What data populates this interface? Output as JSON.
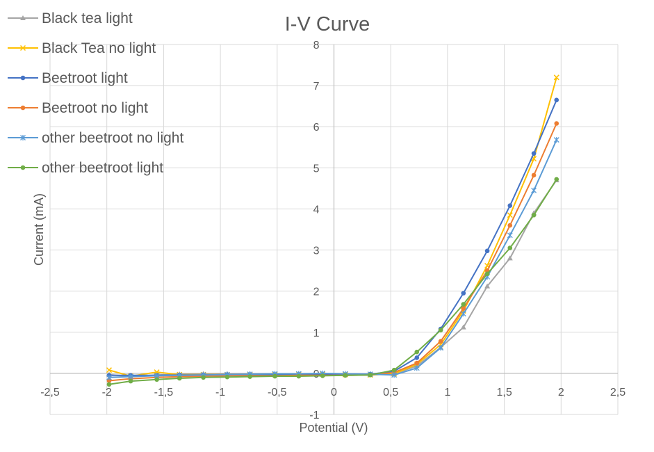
{
  "chart_data": {
    "type": "scatter",
    "title": "I-V Curve",
    "xlabel": "Potential  (V)",
    "ylabel": "Current (mA)",
    "xlim": [
      -2.5,
      2.5
    ],
    "ylim": [
      -1,
      8
    ],
    "xticks": [
      -2.5,
      -2,
      -1.5,
      -1,
      -0.5,
      0,
      0.5,
      1,
      1.5,
      2,
      2.5
    ],
    "xtick_labels": [
      "-2,5",
      "-2",
      "-1,5",
      "-1",
      "-0,5",
      "0",
      "0,5",
      "1",
      "1,5",
      "2",
      "2,5"
    ],
    "yticks": [
      -1,
      0,
      1,
      2,
      3,
      4,
      5,
      6,
      7,
      8
    ],
    "ytick_labels": [
      "-1",
      "0",
      "1",
      "2",
      "3",
      "4",
      "5",
      "6",
      "7",
      "8"
    ],
    "grid": true,
    "legend_position": "top-left",
    "series": [
      {
        "name": "Black tea light",
        "color": "#A5A5A5",
        "marker": "triangle",
        "points": [
          [
            -1.98,
            -0.03
          ],
          [
            -1.79,
            -0.08
          ],
          [
            -1.56,
            -0.04
          ],
          [
            -1.36,
            -0.02
          ],
          [
            -1.15,
            -0.01
          ],
          [
            -0.94,
            -0.01
          ],
          [
            -0.74,
            -0.01
          ],
          [
            -0.52,
            -0.01
          ],
          [
            -0.31,
            -0.01
          ],
          [
            -0.1,
            -0.01
          ],
          [
            0.1,
            -0.02
          ],
          [
            0.32,
            -0.03
          ],
          [
            0.53,
            -0.02
          ],
          [
            0.73,
            0.18
          ],
          [
            0.94,
            0.63
          ],
          [
            1.14,
            1.12
          ],
          [
            1.35,
            2.12
          ],
          [
            1.55,
            2.8
          ],
          [
            1.76,
            3.9
          ],
          [
            1.96,
            4.7
          ]
        ]
      },
      {
        "name": "Black Tea no light",
        "color": "#FFC000",
        "marker": "x",
        "points": [
          [
            -1.98,
            0.08
          ],
          [
            -1.79,
            -0.07
          ],
          [
            -1.56,
            0.03
          ],
          [
            -1.36,
            -0.03
          ],
          [
            -1.15,
            -0.03
          ],
          [
            -0.94,
            -0.03
          ],
          [
            -0.74,
            -0.03
          ],
          [
            -0.52,
            -0.03
          ],
          [
            -0.31,
            -0.02
          ],
          [
            -0.1,
            -0.02
          ],
          [
            0.1,
            -0.03
          ],
          [
            0.32,
            -0.04
          ],
          [
            0.53,
            -0.01
          ],
          [
            0.73,
            0.22
          ],
          [
            0.94,
            0.7
          ],
          [
            1.14,
            1.52
          ],
          [
            1.35,
            2.62
          ],
          [
            1.55,
            3.85
          ],
          [
            1.76,
            5.22
          ],
          [
            1.96,
            7.2
          ]
        ]
      },
      {
        "name": "Beetroot light",
        "color": "#4472C4",
        "marker": "circle",
        "points": [
          [
            -1.98,
            -0.05
          ],
          [
            -1.79,
            -0.05
          ],
          [
            -1.56,
            -0.05
          ],
          [
            -1.36,
            -0.04
          ],
          [
            -1.15,
            -0.04
          ],
          [
            -0.94,
            -0.03
          ],
          [
            -0.74,
            -0.03
          ],
          [
            -0.52,
            -0.03
          ],
          [
            -0.31,
            -0.03
          ],
          [
            -0.1,
            -0.03
          ],
          [
            0.1,
            -0.03
          ],
          [
            0.32,
            -0.02
          ],
          [
            0.53,
            0.05
          ],
          [
            0.73,
            0.38
          ],
          [
            0.94,
            1.08
          ],
          [
            1.14,
            1.95
          ],
          [
            1.35,
            2.98
          ],
          [
            1.55,
            4.08
          ],
          [
            1.76,
            5.35
          ],
          [
            1.96,
            6.65
          ]
        ]
      },
      {
        "name": "Beetroot no light",
        "color": "#ED7D31",
        "marker": "circle",
        "points": [
          [
            -1.98,
            -0.18
          ],
          [
            -1.79,
            -0.13
          ],
          [
            -1.56,
            -0.1
          ],
          [
            -1.36,
            -0.08
          ],
          [
            -1.15,
            -0.07
          ],
          [
            -0.94,
            -0.06
          ],
          [
            -0.74,
            -0.06
          ],
          [
            -0.52,
            -0.06
          ],
          [
            -0.31,
            -0.05
          ],
          [
            -0.1,
            -0.05
          ],
          [
            0.1,
            -0.05
          ],
          [
            0.32,
            -0.04
          ],
          [
            0.53,
            0.02
          ],
          [
            0.73,
            0.25
          ],
          [
            0.94,
            0.78
          ],
          [
            1.14,
            1.58
          ],
          [
            1.35,
            2.5
          ],
          [
            1.55,
            3.6
          ],
          [
            1.76,
            4.82
          ],
          [
            1.96,
            6.08
          ]
        ]
      },
      {
        "name": "other beetroot no light",
        "color": "#5B9BD5",
        "marker": "star",
        "points": [
          [
            -1.98,
            -0.1
          ],
          [
            -1.79,
            -0.08
          ],
          [
            -1.56,
            -0.06
          ],
          [
            -1.36,
            -0.05
          ],
          [
            -1.15,
            -0.04
          ],
          [
            -0.94,
            -0.03
          ],
          [
            -0.74,
            -0.02
          ],
          [
            -0.52,
            -0.01
          ],
          [
            -0.31,
            -0.01
          ],
          [
            -0.1,
            0.0
          ],
          [
            0.1,
            -0.01
          ],
          [
            0.32,
            -0.02
          ],
          [
            0.53,
            -0.04
          ],
          [
            0.73,
            0.13
          ],
          [
            0.94,
            0.62
          ],
          [
            1.14,
            1.45
          ],
          [
            1.35,
            2.35
          ],
          [
            1.55,
            3.36
          ],
          [
            1.76,
            4.45
          ],
          [
            1.96,
            5.68
          ]
        ]
      },
      {
        "name": "other beetroot light",
        "color": "#70AD47",
        "marker": "circle",
        "points": [
          [
            -1.98,
            -0.27
          ],
          [
            -1.79,
            -0.19
          ],
          [
            -1.56,
            -0.15
          ],
          [
            -1.36,
            -0.12
          ],
          [
            -1.15,
            -0.1
          ],
          [
            -0.94,
            -0.09
          ],
          [
            -0.74,
            -0.08
          ],
          [
            -0.52,
            -0.07
          ],
          [
            -0.31,
            -0.07
          ],
          [
            -0.1,
            -0.06
          ],
          [
            0.1,
            -0.05
          ],
          [
            0.32,
            -0.04
          ],
          [
            0.53,
            0.08
          ],
          [
            0.73,
            0.52
          ],
          [
            0.94,
            1.05
          ],
          [
            1.14,
            1.68
          ],
          [
            1.35,
            2.42
          ],
          [
            1.55,
            3.05
          ],
          [
            1.76,
            3.85
          ],
          [
            1.96,
            4.72
          ]
        ]
      }
    ]
  }
}
